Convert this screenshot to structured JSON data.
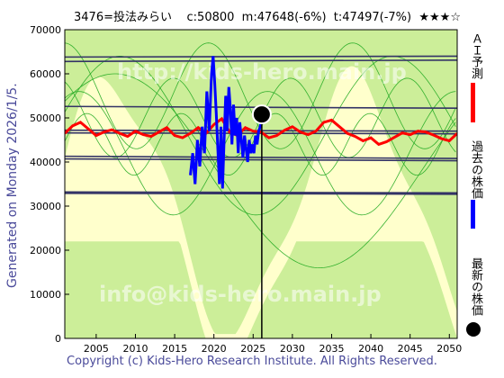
{
  "header": {
    "code": "3476=投法みらい",
    "current": "c:50800",
    "median": "m:47648(-6%)",
    "target": "t:47497(-7%)",
    "stars": "★★★☆"
  },
  "side_generated": "Generated on Monday 2026/1/5.",
  "copyright": "Copyright (c) Kids-Hero Research Institute. All Rights Reserved.",
  "watermarks": [
    "http://kids-hero.main.jp",
    "info@kids-hero.main.jp"
  ],
  "legend": {
    "ai_forecast": "ＡＩ予測",
    "past_price": "過去の株価",
    "latest_price": "最新の株価"
  },
  "colors": {
    "forecast": "#ff0000",
    "past": "#0000ff",
    "latest": "#000000",
    "band_green": "#ccee99",
    "band_yellow": "#ffffcc",
    "band_line": "#22aa22",
    "trend_line": "#333366"
  },
  "chart_data": {
    "type": "line",
    "xlim": [
      2001,
      2051
    ],
    "ylim": [
      0,
      70000
    ],
    "x_ticks": [
      2005,
      2010,
      2015,
      2020,
      2025,
      2030,
      2035,
      2040,
      2045,
      2050
    ],
    "y_ticks": [
      0,
      10000,
      20000,
      30000,
      40000,
      50000,
      60000,
      70000
    ],
    "series": [
      {
        "name": "ＡＩ予測",
        "x": [
          2001,
          2002,
          2003,
          2004,
          2005,
          2006,
          2007,
          2008,
          2009,
          2010,
          2011,
          2012,
          2013,
          2014,
          2015,
          2016,
          2017,
          2018,
          2019,
          2020,
          2021,
          2022,
          2023,
          2024,
          2025,
          2026,
          2027,
          2028,
          2029,
          2030,
          2031,
          2032,
          2033,
          2034,
          2035,
          2036,
          2037,
          2038,
          2039,
          2040,
          2041,
          2042,
          2043,
          2044,
          2045,
          2046,
          2047,
          2048,
          2049,
          2050,
          2051
        ],
        "values": [
          46500,
          48200,
          49000,
          47500,
          46000,
          46800,
          47300,
          46500,
          45800,
          47000,
          46200,
          45800,
          46800,
          47800,
          46000,
          45500,
          46500,
          47800,
          46500,
          48500,
          49800,
          46800,
          46000,
          47800,
          47000,
          46800,
          45500,
          46000,
          47200,
          48000,
          46800,
          46200,
          47000,
          49000,
          49500,
          48000,
          46500,
          45800,
          44800,
          45500,
          44000,
          44600,
          45600,
          46600,
          46200,
          47000,
          46800,
          46100,
          45300,
          44800,
          46500
        ]
      },
      {
        "name": "過去の株価",
        "x": [
          2017.0,
          2017.3,
          2017.6,
          2017.9,
          2018.2,
          2018.5,
          2018.8,
          2019.1,
          2019.4,
          2019.7,
          2019.9,
          2020.1,
          2020.3,
          2020.5,
          2020.7,
          2020.9,
          2021.1,
          2021.3,
          2021.5,
          2021.7,
          2021.9,
          2022.1,
          2022.3,
          2022.5,
          2022.7,
          2022.9,
          2023.1,
          2023.3,
          2023.5,
          2023.7,
          2023.9,
          2024.1,
          2024.3,
          2024.5,
          2024.7,
          2024.9,
          2025.1,
          2025.3,
          2025.5,
          2025.7,
          2025.9,
          2026.1
        ],
        "values": [
          37000,
          42000,
          35000,
          45000,
          39000,
          48000,
          42000,
          56000,
          47000,
          60000,
          64000,
          58000,
          51000,
          43000,
          35000,
          48000,
          34000,
          45000,
          55000,
          47000,
          57000,
          52000,
          44000,
          53000,
          46000,
          50000,
          42000,
          49000,
          45000,
          41000,
          46000,
          43000,
          40000,
          45000,
          42000,
          44000,
          42000,
          46000,
          44000,
          47000,
          48000,
          50800
        ]
      }
    ],
    "latest": {
      "x": 2026.1,
      "y": 50800
    }
  }
}
